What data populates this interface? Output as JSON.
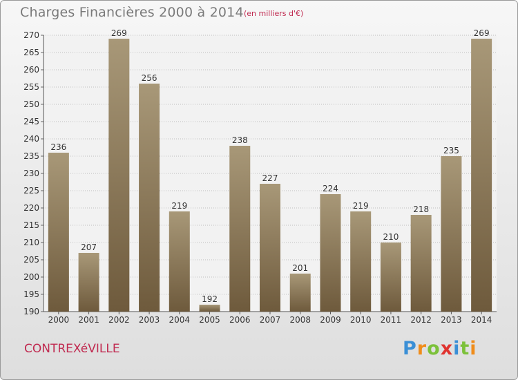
{
  "header": {
    "title": "Charges Financières 2000 à 2014",
    "subtitle": "(en milliers d'€)"
  },
  "footer": {
    "city": "CONTREXéVILLE",
    "logo": "Proxiti",
    "logo_colors": [
      "#3a8fd6",
      "#f08c1a",
      "#7cc13a",
      "#e0332f",
      "#3a8fd6",
      "#7cc13a",
      "#f08c1a"
    ]
  },
  "colors": {
    "bar_top": "#a89878",
    "bar_bottom": "#6e5a3c",
    "grid": "#bdbdbd",
    "text": "#333333"
  },
  "chart_data": {
    "type": "bar",
    "categories": [
      "2000",
      "2001",
      "2002",
      "2003",
      "2004",
      "2005",
      "2006",
      "2007",
      "2008",
      "2009",
      "2010",
      "2011",
      "2012",
      "2013",
      "2014"
    ],
    "values": [
      236,
      207,
      269,
      256,
      219,
      192,
      238,
      227,
      201,
      224,
      219,
      210,
      218,
      235,
      269
    ],
    "title": "Charges Financières 2000 à 2014",
    "ylim": [
      190,
      270
    ],
    "yticks": [
      190,
      195,
      200,
      205,
      210,
      215,
      220,
      225,
      230,
      235,
      240,
      245,
      250,
      255,
      260,
      265,
      270
    ],
    "grid": true
  }
}
